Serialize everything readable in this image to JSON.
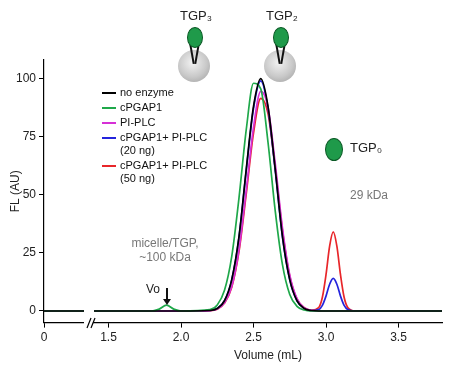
{
  "chart_data": [
    {
      "type": "line",
      "ylabel": "FL (AU)",
      "x": [
        0,
        0.15
      ],
      "xlim": [
        0,
        0.15
      ],
      "xticks": [
        0
      ],
      "ylim": [
        -5,
        108
      ],
      "yticks": [
        0,
        25,
        50,
        75,
        100
      ],
      "series": [
        {
          "name": "no enzyme",
          "color": "#000000",
          "values": [
            0,
            0
          ]
        },
        {
          "name": "cPGAP1",
          "color": "#1fa84a",
          "values": [
            0,
            0
          ]
        },
        {
          "name": "PI-PLC",
          "color": "#d630d6",
          "values": [
            0,
            0
          ]
        },
        {
          "name": "cPGAP1+ PI-PLC (20 ng)",
          "color": "#2424dc",
          "values": [
            0,
            0
          ]
        },
        {
          "name": "cPGAP1+ PI-PLC (50 ng)",
          "color": "#e8262a",
          "values": [
            0,
            0
          ]
        }
      ]
    },
    {
      "type": "line",
      "xlabel": "Volume (mL)",
      "x": [
        1.4,
        1.8,
        1.85,
        1.9,
        1.95,
        2.0,
        2.2,
        2.25,
        2.3,
        2.35,
        2.4,
        2.45,
        2.5,
        2.55,
        2.6,
        2.65,
        2.7,
        2.75,
        2.8,
        2.85,
        2.9,
        2.95,
        2.975,
        3.0,
        3.025,
        3.05,
        3.075,
        3.1,
        3.125,
        3.15,
        3.2,
        3.8
      ],
      "xlim": [
        1.4,
        3.8
      ],
      "xticks": [
        1.5,
        {
          "value": 2,
          "label": "2.0"
        },
        2.5,
        {
          "value": 3,
          "label": "3.0"
        },
        3.5
      ],
      "ylim": [
        -5,
        108
      ],
      "tick_labels": "x",
      "legend": "upper left",
      "series": [
        {
          "name": "no enzyme",
          "color": "#000000",
          "values": [
            0,
            0,
            0,
            0,
            0,
            0,
            0.2,
            1.1,
            4.4,
            13.5,
            32,
            61,
            88,
            100,
            88,
            61,
            32,
            13.5,
            4.4,
            1.1,
            0.2,
            0,
            0,
            0,
            0,
            0,
            0,
            0,
            0,
            0,
            0,
            0
          ]
        },
        {
          "name": "cPGAP1",
          "color": "#1fa84a",
          "values": [
            0,
            0,
            0.8,
            2.5,
            0.8,
            0,
            0.6,
            2.6,
            8.9,
            23.5,
            48.7,
            78,
            98,
            95.6,
            72.6,
            43,
            19.8,
            7.1,
            2,
            0.4,
            0,
            0,
            0,
            0,
            0,
            0,
            0,
            0,
            0,
            0,
            0,
            0
          ]
        },
        {
          "name": "PI-PLC",
          "color": "#d630d6",
          "values": [
            0,
            0,
            0,
            0,
            0,
            0,
            0.15,
            0.8,
            3.5,
            10.5,
            26.4,
            52,
            79,
            94.5,
            87.7,
            63.4,
            35.6,
            15.5,
            5.3,
            1.4,
            0.3,
            0,
            0,
            0,
            0,
            0,
            0,
            0,
            0,
            0,
            0,
            0
          ]
        },
        {
          "name": "cPGAP1+ PI-PLC (20 ng)",
          "color": "#2424dc",
          "values": [
            0,
            0,
            0,
            0,
            0,
            0,
            0.2,
            1.1,
            4.4,
            13.4,
            31.7,
            60.4,
            87.1,
            99,
            87.1,
            60.4,
            31.7,
            13.4,
            4.4,
            1.1,
            0.2,
            0.6,
            2.4,
            6.4,
            11.5,
            14,
            11.5,
            6.4,
            2.4,
            0.6,
            0,
            0
          ]
        },
        {
          "name": "cPGAP1+ PI-PLC (50 ng)",
          "color": "#e8262a",
          "values": [
            0,
            0,
            0,
            0,
            0,
            0,
            0.15,
            0.8,
            3.4,
            10.2,
            25.6,
            50.4,
            76.5,
            91.5,
            84.9,
            61.4,
            34.5,
            15,
            5.1,
            1.4,
            0.3,
            1.5,
            5.9,
            15.6,
            27.9,
            34,
            27.9,
            15.6,
            5.9,
            1.5,
            0,
            0
          ]
        }
      ],
      "annotations": [
        "TGP₃",
        "TGP₂",
        "TGP₀",
        "29 kDa",
        "micelle/TGP, ~100 kDa",
        "Vo"
      ]
    }
  ]
}
